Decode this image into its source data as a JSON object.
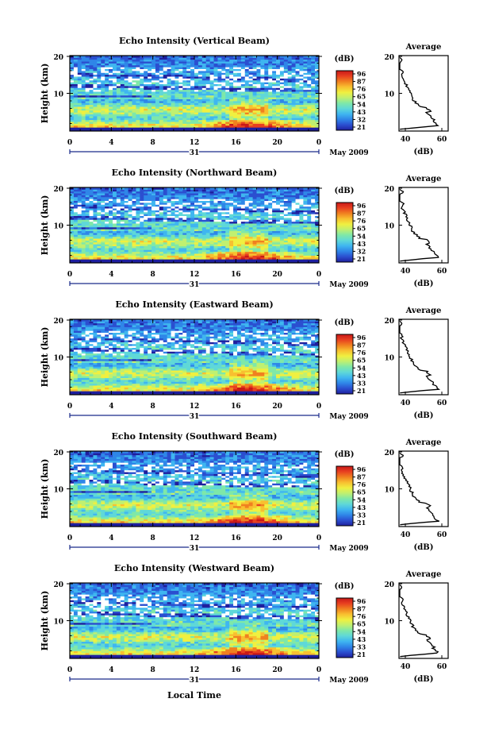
{
  "colorbar_unit": "(dB)",
  "profile_title": "Average",
  "profile_xlabel": "(dB)",
  "shared_xlabel": "Local Time",
  "date_day": "31",
  "date_label": "May 2009",
  "height_label": "Height (km)",
  "x_ticks": [
    "0",
    "4",
    "8",
    "12",
    "16",
    "20",
    "0"
  ],
  "y_ticks": [
    "20",
    "10"
  ],
  "colorbar_colors": [
    "#1f1f9e",
    "#2b4fd0",
    "#2f86e8",
    "#3fb6f0",
    "#5fd8d8",
    "#7fe8a8",
    "#c0f070",
    "#f0f040",
    "#f8c030",
    "#f08020",
    "#e84020",
    "#c81818"
  ],
  "chart_data": [
    {
      "type": "heatmap",
      "title": "Echo Intensity (Vertical Beam)",
      "colorbar_ticks": [
        "96",
        "87",
        "76",
        "65",
        "54",
        "43",
        "32",
        "21"
      ],
      "profile_ticks": [
        "40",
        "60"
      ]
    },
    {
      "type": "heatmap",
      "title": "Echo Intensity (Northward Beam)",
      "colorbar_ticks": [
        "96",
        "87",
        "76",
        "65",
        "54",
        "43",
        "32",
        "21"
      ],
      "profile_ticks": [
        "40",
        "60"
      ]
    },
    {
      "type": "heatmap",
      "title": "Echo Intensity (Eastward Beam)",
      "colorbar_ticks": [
        "96",
        "87",
        "76",
        "65",
        "54",
        "43",
        "33",
        "21"
      ],
      "profile_ticks": [
        "40",
        "60"
      ]
    },
    {
      "type": "heatmap",
      "title": "Echo Intensity (Southward Beam)",
      "colorbar_ticks": [
        "96",
        "87",
        "76",
        "65",
        "54",
        "43",
        "33",
        "21"
      ],
      "profile_ticks": [
        "40",
        "60"
      ]
    },
    {
      "type": "heatmap",
      "title": "Echo Intensity (Westward Beam)",
      "colorbar_ticks": [
        "96",
        "87",
        "76",
        "65",
        "54",
        "43",
        "33",
        "21"
      ],
      "profile_ticks": [
        "40",
        "60"
      ]
    }
  ]
}
